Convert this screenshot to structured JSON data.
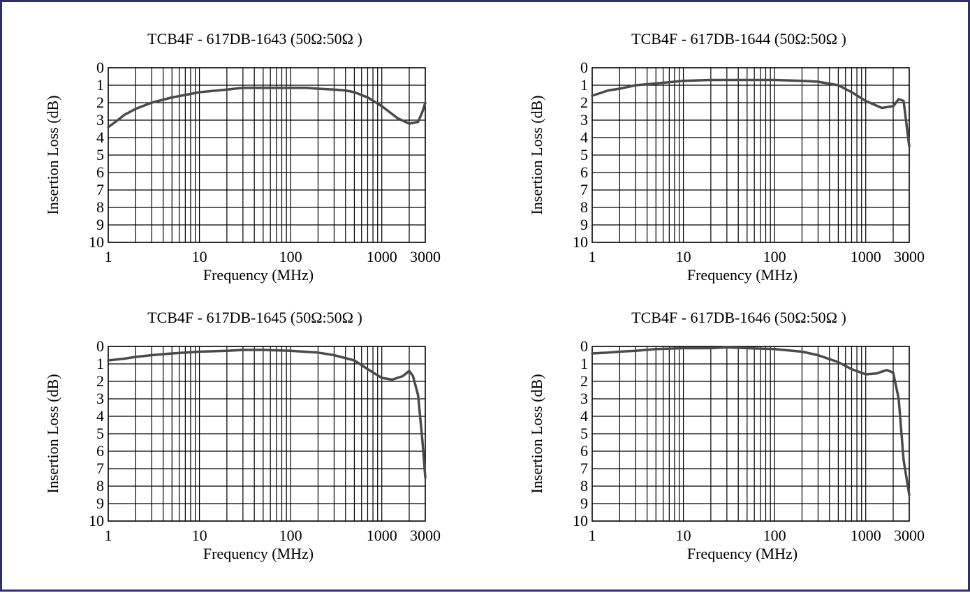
{
  "chart_data": [
    {
      "type": "line",
      "title": "TCB4F - 617DB-1643 (50Ω:50Ω )",
      "xlabel": "Frequency (MHz)",
      "ylabel": "Insertion Loss (dB)",
      "xscale": "log",
      "xlim": [
        1,
        3000
      ],
      "ylim": [
        0,
        10
      ],
      "y_inverted": true,
      "grid": true,
      "xtick_labels": [
        "1",
        "10",
        "100",
        "1000",
        "3000"
      ],
      "ytick_labels": [
        "0",
        "1",
        "2",
        "3",
        "4",
        "5",
        "6",
        "7",
        "8",
        "9",
        "10"
      ],
      "series": [
        {
          "x": [
            1,
            1.2,
            1.5,
            2,
            3,
            5,
            8,
            10,
            20,
            30,
            50,
            100,
            150,
            200,
            300,
            400,
            500,
            700,
            1000,
            1500,
            2000,
            2500,
            2800,
            3000
          ],
          "y": [
            3.4,
            3.1,
            2.7,
            2.35,
            2.0,
            1.7,
            1.5,
            1.4,
            1.25,
            1.15,
            1.15,
            1.15,
            1.15,
            1.2,
            1.25,
            1.3,
            1.4,
            1.7,
            2.2,
            2.9,
            3.2,
            3.1,
            2.5,
            2.0
          ]
        }
      ]
    },
    {
      "type": "line",
      "title": "TCB4F - 617DB-1644 (50Ω:50Ω )",
      "xlabel": "Frequency (MHz)",
      "ylabel": "Insertion Loss (dB)",
      "xscale": "log",
      "xlim": [
        1,
        3000
      ],
      "ylim": [
        0,
        10
      ],
      "y_inverted": true,
      "grid": true,
      "xtick_labels": [
        "1",
        "10",
        "100",
        "1000",
        "3000"
      ],
      "ytick_labels": [
        "0",
        "1",
        "2",
        "3",
        "4",
        "5",
        "6",
        "7",
        "8",
        "9",
        "10"
      ],
      "series": [
        {
          "x": [
            1,
            1.5,
            2,
            3,
            5,
            10,
            20,
            50,
            100,
            200,
            300,
            500,
            700,
            1000,
            1500,
            2000,
            2300,
            2600,
            3000
          ],
          "y": [
            1.6,
            1.3,
            1.2,
            1.0,
            0.9,
            0.75,
            0.7,
            0.7,
            0.7,
            0.75,
            0.8,
            1.0,
            1.4,
            1.9,
            2.3,
            2.2,
            1.8,
            1.9,
            4.5
          ]
        }
      ]
    },
    {
      "type": "line",
      "title": "TCB4F - 617DB-1645 (50Ω:50Ω )",
      "xlabel": "Frequency (MHz)",
      "ylabel": "Insertion Loss (dB)",
      "xscale": "log",
      "xlim": [
        1,
        3000
      ],
      "ylim": [
        0,
        10
      ],
      "y_inverted": true,
      "grid": true,
      "xtick_labels": [
        "1",
        "10",
        "100",
        "1000",
        "3000"
      ],
      "ytick_labels": [
        "0",
        "1",
        "2",
        "3",
        "4",
        "5",
        "6",
        "7",
        "8",
        "9",
        "10"
      ],
      "series": [
        {
          "x": [
            1,
            1.5,
            2,
            3,
            5,
            10,
            20,
            30,
            50,
            100,
            200,
            300,
            500,
            700,
            1000,
            1300,
            1700,
            2000,
            2200,
            2500,
            2800,
            3000
          ],
          "y": [
            0.8,
            0.7,
            0.6,
            0.5,
            0.4,
            0.3,
            0.25,
            0.2,
            0.2,
            0.25,
            0.35,
            0.5,
            0.8,
            1.3,
            1.8,
            1.9,
            1.7,
            1.4,
            1.7,
            2.8,
            5.5,
            7.5
          ]
        }
      ]
    },
    {
      "type": "line",
      "title": "TCB4F - 617DB-1646 (50Ω:50Ω )",
      "xlabel": "Frequency (MHz)",
      "ylabel": "Insertion Loss (dB)",
      "xscale": "log",
      "xlim": [
        1,
        3000
      ],
      "ylim": [
        0,
        10
      ],
      "y_inverted": true,
      "grid": true,
      "xtick_labels": [
        "1",
        "10",
        "100",
        "1000",
        "3000"
      ],
      "ytick_labels": [
        "0",
        "1",
        "2",
        "3",
        "4",
        "5",
        "6",
        "7",
        "8",
        "9",
        "10"
      ],
      "series": [
        {
          "x": [
            1,
            1.5,
            2,
            3,
            5,
            10,
            20,
            30,
            50,
            100,
            200,
            300,
            500,
            700,
            1000,
            1300,
            1700,
            2000,
            2300,
            2600,
            3000
          ],
          "y": [
            0.4,
            0.35,
            0.3,
            0.25,
            0.15,
            0.1,
            0.1,
            0.05,
            0.1,
            0.15,
            0.3,
            0.5,
            0.9,
            1.3,
            1.6,
            1.55,
            1.35,
            1.5,
            3.0,
            6.5,
            8.5
          ]
        }
      ]
    }
  ],
  "colors": {
    "line": "#4a4a4a",
    "grid": "#000000",
    "frame": "#2e2e6e"
  }
}
